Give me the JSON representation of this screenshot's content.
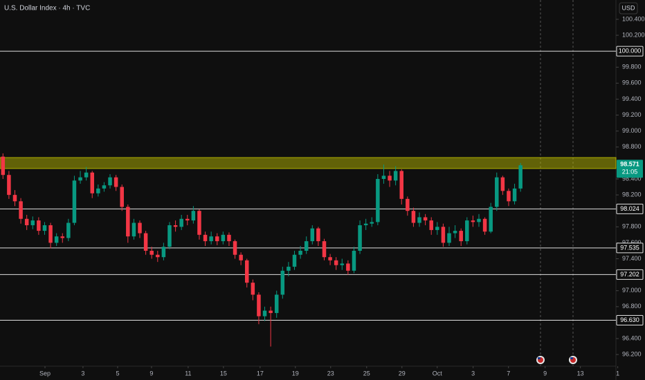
{
  "chart_data": {
    "type": "candlestick",
    "title": "U.S. Dollar Index · 4h · TVC",
    "currency": "USD",
    "up_color": "#089981",
    "down_color": "#f23645",
    "open": [
      98.68,
      98.45,
      98.2,
      98.12,
      97.9,
      97.82,
      97.88,
      97.75,
      97.82,
      97.6,
      97.68,
      97.66,
      97.85,
      98.38,
      98.42,
      98.48,
      98.22,
      98.28,
      98.32,
      98.42,
      98.3,
      98.05,
      97.68,
      97.85,
      97.72,
      97.5,
      97.45,
      97.42,
      97.55,
      97.82,
      97.8,
      97.9,
      97.88,
      98.0,
      97.7,
      97.62,
      97.68,
      97.62,
      97.7,
      97.62,
      97.45,
      97.38,
      97.1,
      96.95,
      96.68,
      96.75,
      96.72,
      96.95,
      97.25,
      97.3,
      97.45,
      97.5,
      97.62,
      97.78,
      97.62,
      97.42,
      97.38,
      97.32,
      97.34,
      97.25,
      97.5,
      97.82,
      97.84,
      97.86,
      98.4,
      98.44,
      98.38,
      98.5,
      98.15,
      98.0,
      97.85,
      97.92,
      97.88,
      97.76,
      97.8,
      97.6,
      97.72,
      97.75,
      97.62,
      97.88,
      97.86,
      97.9,
      97.74,
      98.05,
      98.42,
      98.25,
      98.12,
      98.28
    ],
    "high": [
      98.72,
      98.5,
      98.26,
      98.16,
      97.95,
      97.93,
      97.92,
      97.86,
      97.85,
      97.72,
      97.72,
      97.9,
      98.44,
      98.5,
      98.55,
      98.5,
      98.33,
      98.36,
      98.46,
      98.45,
      98.33,
      98.08,
      97.9,
      97.88,
      97.75,
      97.55,
      97.5,
      97.6,
      97.86,
      97.88,
      97.95,
      97.95,
      98.06,
      98.02,
      97.74,
      97.74,
      97.72,
      97.74,
      97.73,
      97.64,
      97.48,
      97.4,
      97.14,
      96.98,
      96.8,
      96.8,
      97.0,
      97.3,
      97.36,
      97.5,
      97.56,
      97.68,
      97.82,
      97.8,
      97.65,
      97.46,
      97.42,
      97.4,
      97.38,
      97.55,
      97.88,
      97.9,
      97.92,
      98.46,
      98.58,
      98.5,
      98.56,
      98.52,
      98.18,
      98.04,
      97.98,
      97.96,
      97.92,
      97.86,
      97.84,
      97.8,
      97.82,
      97.78,
      97.92,
      97.94,
      97.96,
      97.92,
      98.1,
      98.48,
      98.44,
      98.28,
      98.34,
      98.6
    ],
    "low": [
      98.4,
      98.15,
      98.06,
      97.84,
      97.76,
      97.77,
      97.7,
      97.7,
      97.53,
      97.56,
      97.6,
      97.62,
      97.82,
      98.34,
      98.38,
      98.16,
      98.18,
      98.24,
      98.28,
      98.25,
      98.0,
      97.6,
      97.64,
      97.66,
      97.45,
      97.4,
      97.36,
      97.38,
      97.52,
      97.74,
      97.76,
      97.82,
      97.84,
      97.64,
      97.56,
      97.58,
      97.57,
      97.58,
      97.56,
      97.4,
      97.32,
      97.04,
      96.88,
      96.58,
      96.62,
      96.3,
      96.66,
      96.9,
      97.18,
      97.26,
      97.4,
      97.46,
      97.58,
      97.56,
      97.38,
      97.32,
      97.26,
      97.26,
      97.2,
      97.22,
      97.46,
      97.76,
      97.8,
      97.82,
      98.34,
      98.3,
      98.32,
      98.08,
      97.94,
      97.8,
      97.8,
      97.82,
      97.7,
      97.7,
      97.55,
      97.56,
      97.66,
      97.56,
      97.58,
      97.8,
      97.8,
      97.7,
      97.72,
      98.0,
      98.2,
      98.06,
      98.08,
      98.24
    ],
    "close": [
      98.45,
      98.2,
      98.12,
      97.9,
      97.82,
      97.88,
      97.75,
      97.82,
      97.6,
      97.68,
      97.66,
      97.85,
      98.38,
      98.42,
      98.48,
      98.22,
      98.28,
      98.32,
      98.42,
      98.3,
      98.05,
      97.68,
      97.85,
      97.72,
      97.5,
      97.45,
      97.42,
      97.55,
      97.82,
      97.8,
      97.9,
      97.88,
      98.0,
      97.7,
      97.62,
      97.68,
      97.62,
      97.7,
      97.62,
      97.45,
      97.38,
      97.1,
      96.95,
      96.68,
      96.75,
      96.72,
      96.95,
      97.25,
      97.3,
      97.45,
      97.5,
      97.62,
      97.78,
      97.62,
      97.42,
      97.38,
      97.32,
      97.34,
      97.25,
      97.5,
      97.82,
      97.84,
      97.86,
      98.4,
      98.44,
      98.38,
      98.5,
      98.15,
      98.0,
      97.85,
      97.92,
      97.88,
      97.76,
      97.8,
      97.6,
      97.72,
      97.75,
      97.62,
      97.88,
      97.86,
      97.9,
      97.74,
      98.05,
      98.42,
      98.25,
      98.12,
      98.28,
      98.571
    ],
    "last_price": {
      "value": 98.571,
      "label": "98.571"
    },
    "countdown": "21:05",
    "zone": [
      98.53,
      98.668
    ],
    "zone_color": "#c8c800",
    "levels": [
      {
        "value": 100,
        "label": "100.000"
      },
      {
        "value": 98.024,
        "label": "98.024"
      },
      {
        "value": 97.535,
        "label": "97.535"
      },
      {
        "value": 97.202,
        "label": "97.202"
      },
      {
        "value": 96.63,
        "label": "96.630"
      }
    ],
    "ylim": [
      96.054,
      100.642
    ],
    "yticks": [
      {
        "value": 100.4,
        "label": "100.400"
      },
      {
        "value": 100.2,
        "label": "100.200"
      },
      {
        "value": 99.8,
        "label": "99.800"
      },
      {
        "value": 99.6,
        "label": "99.600"
      },
      {
        "value": 99.4,
        "label": "99.400"
      },
      {
        "value": 99.2,
        "label": "99.200"
      },
      {
        "value": 99,
        "label": "99.000"
      },
      {
        "value": 98.8,
        "label": "98.800"
      },
      {
        "value": 98.4,
        "label": "98.400"
      },
      {
        "value": 98.2,
        "label": "98.200"
      },
      {
        "value": 97.8,
        "label": "97.800"
      },
      {
        "value": 97.6,
        "label": "97.600"
      },
      {
        "value": 97.4,
        "label": "97.400"
      },
      {
        "value": 97,
        "label": "97.000"
      },
      {
        "value": 96.8,
        "label": "96.800"
      },
      {
        "value": 96.4,
        "label": "96.400"
      },
      {
        "value": 96.2,
        "label": "96.200"
      }
    ],
    "xlim": [
      0,
      104
    ],
    "xticks": [
      {
        "value": 7.56,
        "label": "Sep"
      },
      {
        "value": 13.95,
        "label": "3"
      },
      {
        "value": 19.77,
        "label": "5"
      },
      {
        "value": 25.47,
        "label": "9"
      },
      {
        "value": 31.63,
        "label": "11"
      },
      {
        "value": 37.56,
        "label": "15"
      },
      {
        "value": 43.72,
        "label": "17"
      },
      {
        "value": 49.65,
        "label": "19"
      },
      {
        "value": 55.58,
        "label": "23"
      },
      {
        "value": 61.63,
        "label": "25"
      },
      {
        "value": 67.56,
        "label": "29"
      },
      {
        "value": 73.49,
        "label": "Oct"
      },
      {
        "value": 79.53,
        "label": "3"
      },
      {
        "value": 85.47,
        "label": "7"
      },
      {
        "value": 91.63,
        "label": "9"
      },
      {
        "value": 97.56,
        "label": "13"
      },
      {
        "value": 103.84,
        "label": "1"
      }
    ]
  }
}
